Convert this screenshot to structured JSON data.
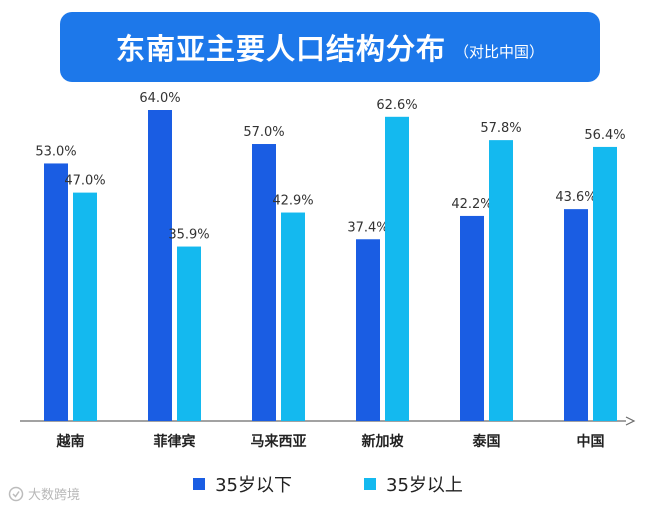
{
  "title": {
    "main": "东南亚主要人口结构分布",
    "sub": "（对比中国）"
  },
  "chart_data": {
    "type": "bar",
    "title": "东南亚主要人口结构分布（对比中国）",
    "categories": [
      "越南",
      "菲律宾",
      "马来西亚",
      "新加坡",
      "泰国",
      "中国"
    ],
    "series": [
      {
        "name": "35岁以下",
        "color": "#1a5de3",
        "values": [
          53.0,
          64.0,
          57.0,
          37.4,
          42.2,
          43.6
        ],
        "labels": [
          "53.0%",
          "64.0%",
          "57.0%",
          "37.4%",
          "42.2%",
          "43.6%"
        ]
      },
      {
        "name": "35岁以上",
        "color": "#14b9ef",
        "values": [
          47.0,
          35.9,
          42.9,
          62.6,
          57.8,
          56.4
        ],
        "labels": [
          "47.0%",
          "35.9%",
          "42.9%",
          "62.6%",
          "57.8%",
          "56.4%"
        ]
      }
    ],
    "xlabel": "",
    "ylabel": "",
    "ylim": [
      0,
      70
    ],
    "unit": "%",
    "grid": false,
    "legend": "bottom"
  },
  "legend": {
    "items": [
      "35岁以下",
      "35岁以上"
    ]
  },
  "watermark": {
    "text": "大数跨境"
  }
}
